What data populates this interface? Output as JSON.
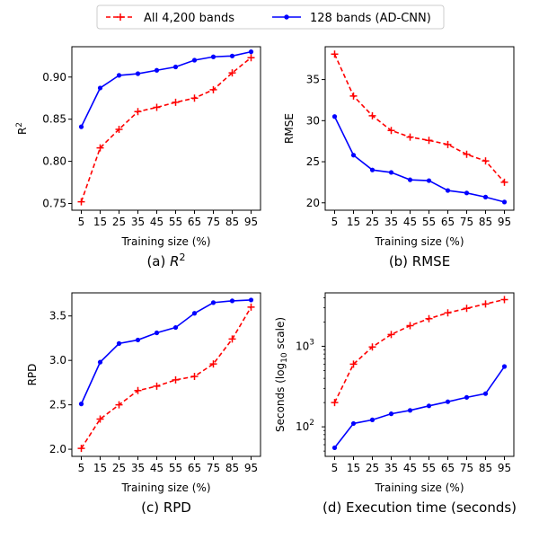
{
  "legend": {
    "items": [
      {
        "label": "All 4,200 bands",
        "color": "#ff0000",
        "style": "dashed",
        "marker": "plus"
      },
      {
        "label": "128 bands (AD-CNN)",
        "color": "#0000ff",
        "style": "solid",
        "marker": "dot"
      }
    ],
    "placement": "top-center"
  },
  "chart_data": [
    {
      "type": "line",
      "caption_prefix": "(a) ",
      "caption_main": "R",
      "caption_sup": "2",
      "ylabel_main": "R",
      "ylabel_sup": "2",
      "xlabel": "Training size (%)",
      "x": [
        5,
        15,
        25,
        35,
        45,
        55,
        65,
        75,
        85,
        95
      ],
      "ylim": [
        0.742,
        0.936
      ],
      "yticks": [
        "0.75",
        "0.80",
        "0.85",
        "0.90"
      ],
      "ytick_values": [
        0.75,
        0.8,
        0.85,
        0.9
      ],
      "yscale": "linear",
      "series": [
        {
          "name": "All 4,200 bands",
          "values": [
            0.752,
            0.816,
            0.838,
            0.859,
            0.864,
            0.87,
            0.875,
            0.885,
            0.905,
            0.923
          ]
        },
        {
          "name": "128 bands (AD-CNN)",
          "values": [
            0.841,
            0.887,
            0.902,
            0.904,
            0.908,
            0.912,
            0.92,
            0.924,
            0.925,
            0.93
          ]
        }
      ]
    },
    {
      "type": "line",
      "caption_prefix": "(b) RMSE",
      "caption_main": "",
      "caption_sup": "",
      "ylabel_main": "RMSE",
      "ylabel_sup": "",
      "xlabel": "Training size (%)",
      "x": [
        5,
        15,
        25,
        35,
        45,
        55,
        65,
        75,
        85,
        95
      ],
      "ylim": [
        19.1,
        39.0
      ],
      "yticks": [
        "20",
        "25",
        "30",
        "35"
      ],
      "ytick_values": [
        20,
        25,
        30,
        35
      ],
      "yscale": "linear",
      "series": [
        {
          "name": "All 4,200 bands",
          "values": [
            38.1,
            33.0,
            30.6,
            28.8,
            28.0,
            27.6,
            27.1,
            25.9,
            25.1,
            22.5
          ]
        },
        {
          "name": "128 bands (AD-CNN)",
          "values": [
            30.5,
            25.8,
            24.0,
            23.7,
            22.8,
            22.7,
            21.5,
            21.2,
            20.7,
            20.1
          ]
        }
      ]
    },
    {
      "type": "line",
      "caption_prefix": "(c) RPD",
      "caption_main": "",
      "caption_sup": "",
      "ylabel_main": "RPD",
      "ylabel_sup": "",
      "xlabel": "Training size (%)",
      "x": [
        5,
        15,
        25,
        35,
        45,
        55,
        65,
        75,
        85,
        95
      ],
      "ylim": [
        1.92,
        3.76
      ],
      "yticks": [
        "2.0",
        "2.5",
        "3.0",
        "3.5"
      ],
      "ytick_values": [
        2.0,
        2.5,
        3.0,
        3.5
      ],
      "yscale": "linear",
      "series": [
        {
          "name": "All 4,200 bands",
          "values": [
            2.01,
            2.34,
            2.5,
            2.66,
            2.71,
            2.78,
            2.82,
            2.96,
            3.24,
            3.6
          ]
        },
        {
          "name": "128 bands (AD-CNN)",
          "values": [
            2.51,
            2.98,
            3.19,
            3.23,
            3.31,
            3.37,
            3.53,
            3.65,
            3.67,
            3.68
          ]
        }
      ]
    },
    {
      "type": "line",
      "caption_prefix": "(d) Execution time (seconds)",
      "caption_main": "",
      "caption_sup": "",
      "ylabel_main": "Seconds (log",
      "ylabel_sub": "10",
      "ylabel_tail": " scale)",
      "xlabel": "Training size (%)",
      "x": [
        5,
        15,
        25,
        35,
        45,
        55,
        65,
        75,
        85,
        95
      ],
      "ylim": [
        43,
        4600
      ],
      "yticks_main": [
        "10",
        "10"
      ],
      "yticks_exp": [
        "2",
        "3"
      ],
      "ytick_values": [
        100,
        1000
      ],
      "yscale": "log",
      "series": [
        {
          "name": "All 4,200 bands",
          "values": [
            200,
            600,
            980,
            1400,
            1800,
            2200,
            2600,
            2950,
            3350,
            3800
          ]
        },
        {
          "name": "128 bands (AD-CNN)",
          "values": [
            55,
            110,
            122,
            145,
            160,
            182,
            205,
            232,
            258,
            560
          ]
        }
      ]
    }
  ]
}
